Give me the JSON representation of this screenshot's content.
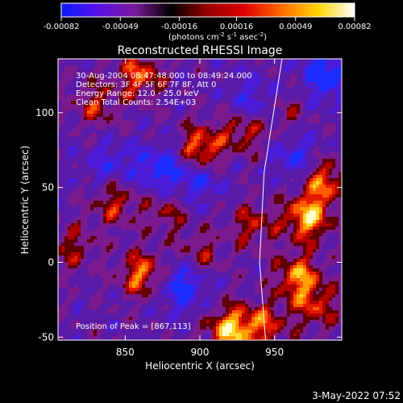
{
  "colorbar": {
    "ticks": [
      "-0.00082",
      "-0.00049",
      "-0.00016",
      "0.00016",
      "0.00049",
      "0.00082"
    ],
    "units_parts": [
      "(photons cm",
      "-2",
      " s",
      "-1",
      " asec",
      "-2",
      ")"
    ],
    "stops": [
      "#0a1cff",
      "#5a10e8",
      "#7a1a9a",
      "#000000",
      "#9a0000",
      "#e00000",
      "#ff6a00",
      "#ffd400",
      "#ffffff"
    ]
  },
  "plot": {
    "title": "Reconstructed RHESSI Image",
    "xlabel": "Heliocentric X (arcsec)",
    "ylabel": "Heliocentric Y (arcsec)",
    "annotations": [
      "30-Aug-2004 08:47:48.000 to 08:49:24.000",
      "Detectors: 3F 4F 5F 6F 7F 8F, Att 0",
      "Energy Range: 12.0 - 25.0 keV",
      "Clean    Total Counts: 2.54E+03"
    ],
    "peak_text": "Position of Peak = [867,113]"
  },
  "footer": {
    "timestamp": "3-May-2022 07:52"
  },
  "chart_data": {
    "type": "heatmap",
    "title": "Reconstructed RHESSI Image",
    "xlabel": "Heliocentric X (arcsec)",
    "ylabel": "Heliocentric Y (arcsec)",
    "xlim": [
      805,
      995
    ],
    "ylim": [
      -52,
      136
    ],
    "xticks": [
      850,
      900,
      950
    ],
    "yticks": [
      -50,
      0,
      50,
      100
    ],
    "colorbar_range": [
      -0.00082,
      0.00082
    ],
    "colorbar_ticks": [
      -0.00082,
      -0.00049,
      -0.00016,
      0.00016,
      0.00049,
      0.00082
    ],
    "colorbar_units": "(photons cm^-2 s^-1 asec^-2)",
    "peak_position": [
      867,
      113
    ],
    "hot_spots": [
      {
        "x": 860,
        "y": 125,
        "level": 0.7
      },
      {
        "x": 830,
        "y": 105,
        "level": 0.5
      },
      {
        "x": 900,
        "y": 75,
        "level": 0.9
      },
      {
        "x": 930,
        "y": 90,
        "level": 0.7
      },
      {
        "x": 983,
        "y": 55,
        "level": 0.75
      },
      {
        "x": 972,
        "y": 30,
        "level": 0.95
      },
      {
        "x": 843,
        "y": 40,
        "level": 0.55
      },
      {
        "x": 878,
        "y": 35,
        "level": 0.45
      },
      {
        "x": 935,
        "y": 25,
        "level": 0.5
      },
      {
        "x": 862,
        "y": -8,
        "level": 0.8
      },
      {
        "x": 900,
        "y": 5,
        "level": 0.45
      },
      {
        "x": 920,
        "y": -45,
        "level": 0.95
      },
      {
        "x": 966,
        "y": -10,
        "level": 0.8
      },
      {
        "x": 978,
        "y": -30,
        "level": 0.55
      },
      {
        "x": 943,
        "y": -42,
        "level": 0.6
      },
      {
        "x": 815,
        "y": 10,
        "level": 0.45
      },
      {
        "x": 840,
        "y": 75,
        "level": 0.4
      },
      {
        "x": 958,
        "y": 100,
        "level": 0.35
      }
    ],
    "cold_spots": [
      {
        "x": 840,
        "y": 70,
        "level": 0.9
      },
      {
        "x": 875,
        "y": 62,
        "level": 0.8
      },
      {
        "x": 900,
        "y": 55,
        "level": 0.6
      },
      {
        "x": 935,
        "y": 105,
        "level": 0.7
      },
      {
        "x": 985,
        "y": 125,
        "level": 0.9
      },
      {
        "x": 888,
        "y": -15,
        "level": 0.85
      },
      {
        "x": 965,
        "y": 70,
        "level": 0.6
      }
    ],
    "limb_line": [
      [
        955,
        136
      ],
      [
        943,
        60
      ],
      [
        940,
        0
      ],
      [
        944,
        -52
      ]
    ]
  }
}
